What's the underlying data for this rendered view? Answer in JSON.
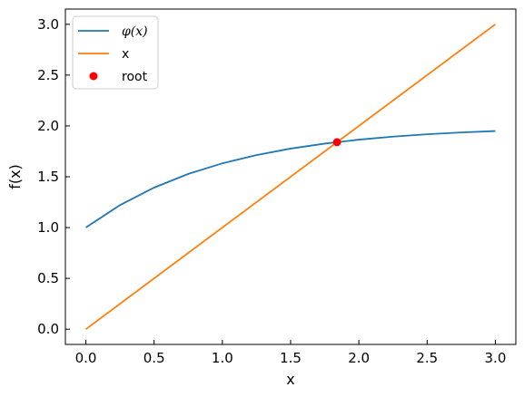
{
  "chart_data": {
    "type": "line",
    "xlabel": "x",
    "ylabel": "f(x)",
    "xlim": [
      -0.15,
      3.15
    ],
    "ylim": [
      -0.15,
      3.15
    ],
    "xticks": [
      0.0,
      0.5,
      1.0,
      1.5,
      2.0,
      2.5,
      3.0
    ],
    "xtick_labels": [
      "0.0",
      "0.5",
      "1.0",
      "1.5",
      "2.0",
      "2.5",
      "3.0"
    ],
    "yticks": [
      0.0,
      0.5,
      1.0,
      1.5,
      2.0,
      2.5,
      3.0
    ],
    "ytick_labels": [
      "0.0",
      "0.5",
      "1.0",
      "1.5",
      "2.0",
      "2.5",
      "3.0"
    ],
    "grid": false,
    "legend_position": "top-left",
    "series": [
      {
        "name": "φ(x)",
        "color": "#1f77b4",
        "kind": "line",
        "x": [
          0.0,
          0.25,
          0.5,
          0.75,
          1.0,
          1.25,
          1.5,
          1.75,
          2.0,
          2.25,
          2.5,
          2.75,
          3.0
        ],
        "y": [
          1.0,
          1.221,
          1.393,
          1.528,
          1.632,
          1.713,
          1.777,
          1.826,
          1.865,
          1.895,
          1.918,
          1.936,
          1.95
        ]
      },
      {
        "name": "x",
        "color": "#ff7f0e",
        "kind": "line",
        "x": [
          0.0,
          3.0
        ],
        "y": [
          0.0,
          3.0
        ]
      },
      {
        "name": "root",
        "color": "#ff0000",
        "kind": "point",
        "x": [
          1.84
        ],
        "y": [
          1.84
        ]
      }
    ]
  }
}
